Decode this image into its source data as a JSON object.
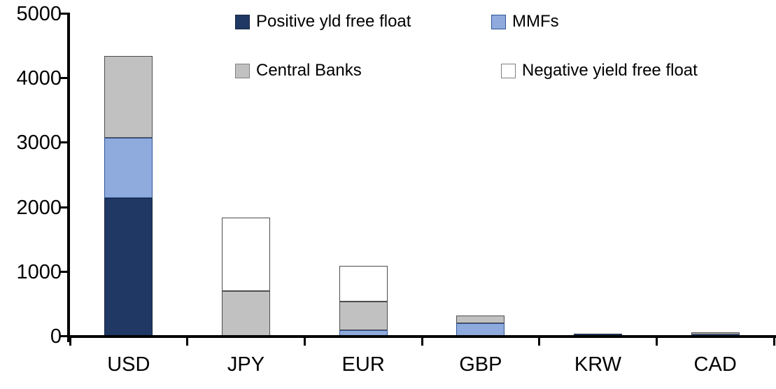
{
  "chart_data": {
    "type": "bar",
    "stacked": true,
    "categories": [
      "USD",
      "JPY",
      "EUR",
      "GBP",
      "KRW",
      "CAD"
    ],
    "series": [
      {
        "name": "Positive yld free float",
        "color": "#1F3864",
        "border": "#17263F",
        "values": [
          2150,
          0,
          0,
          0,
          45,
          25
        ]
      },
      {
        "name": "MMFs",
        "color": "#8FAADC",
        "border": "#2F5597",
        "values": [
          930,
          0,
          100,
          210,
          0,
          10
        ]
      },
      {
        "name": "Central Banks",
        "color": "#C1C1C1",
        "border": "#4D4D4D",
        "values": [
          1270,
          700,
          440,
          110,
          0,
          25
        ]
      },
      {
        "name": "Negative yield free float",
        "color": "#FFFFFF",
        "border": "#4D4D4D",
        "values": [
          0,
          1140,
          560,
          0,
          0,
          0
        ]
      }
    ],
    "ylim": [
      0,
      5000
    ],
    "yticks": [
      0,
      1000,
      2000,
      3000,
      4000,
      5000
    ],
    "ytick_labels": [
      "0",
      "1000",
      "2000",
      "3000",
      "4000",
      "5000"
    ],
    "grid": false,
    "legend_position": "top",
    "legend_rows": [
      [
        "Positive yld free float",
        "MMFs"
      ],
      [
        "Central Banks",
        "Negative yield free float"
      ]
    ],
    "axis_color": "#000000",
    "background_color": "#FFFFFF"
  }
}
